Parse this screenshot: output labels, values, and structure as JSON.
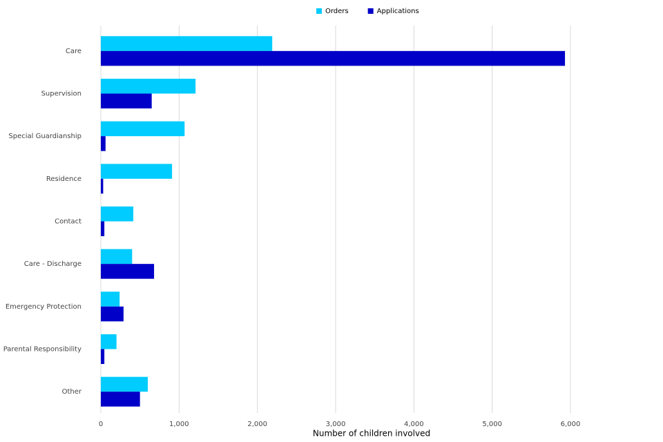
{
  "chart_data": {
    "type": "bar",
    "orientation": "horizontal",
    "x_label": "Number of children involved",
    "categories": [
      "Care",
      "Supervision",
      "Special Guardianship",
      "Residence",
      "Contact",
      "Care - Discharge",
      "Emergency Protection",
      "Parental Responsibility",
      "Other"
    ],
    "series": [
      {
        "name": "Orders",
        "color": "#00ccff",
        "values": [
          2190,
          1210,
          1070,
          910,
          415,
          400,
          240,
          200,
          600
        ]
      },
      {
        "name": "Applications",
        "color": "#0000c8",
        "values": [
          5930,
          650,
          60,
          30,
          45,
          680,
          290,
          45,
          500
        ]
      }
    ],
    "xlim": [
      0,
      6000
    ],
    "xticks": [
      0,
      {
        "value": 1000,
        "label": "1,000"
      },
      {
        "value": 2000,
        "label": "2,000"
      },
      {
        "value": 3000,
        "label": "3,000"
      },
      {
        "value": 4000,
        "label": "4,000"
      },
      {
        "value": 5000,
        "label": "5,000"
      },
      {
        "value": 6000,
        "label": "6,000"
      }
    ],
    "grid": true,
    "legend": "top"
  }
}
